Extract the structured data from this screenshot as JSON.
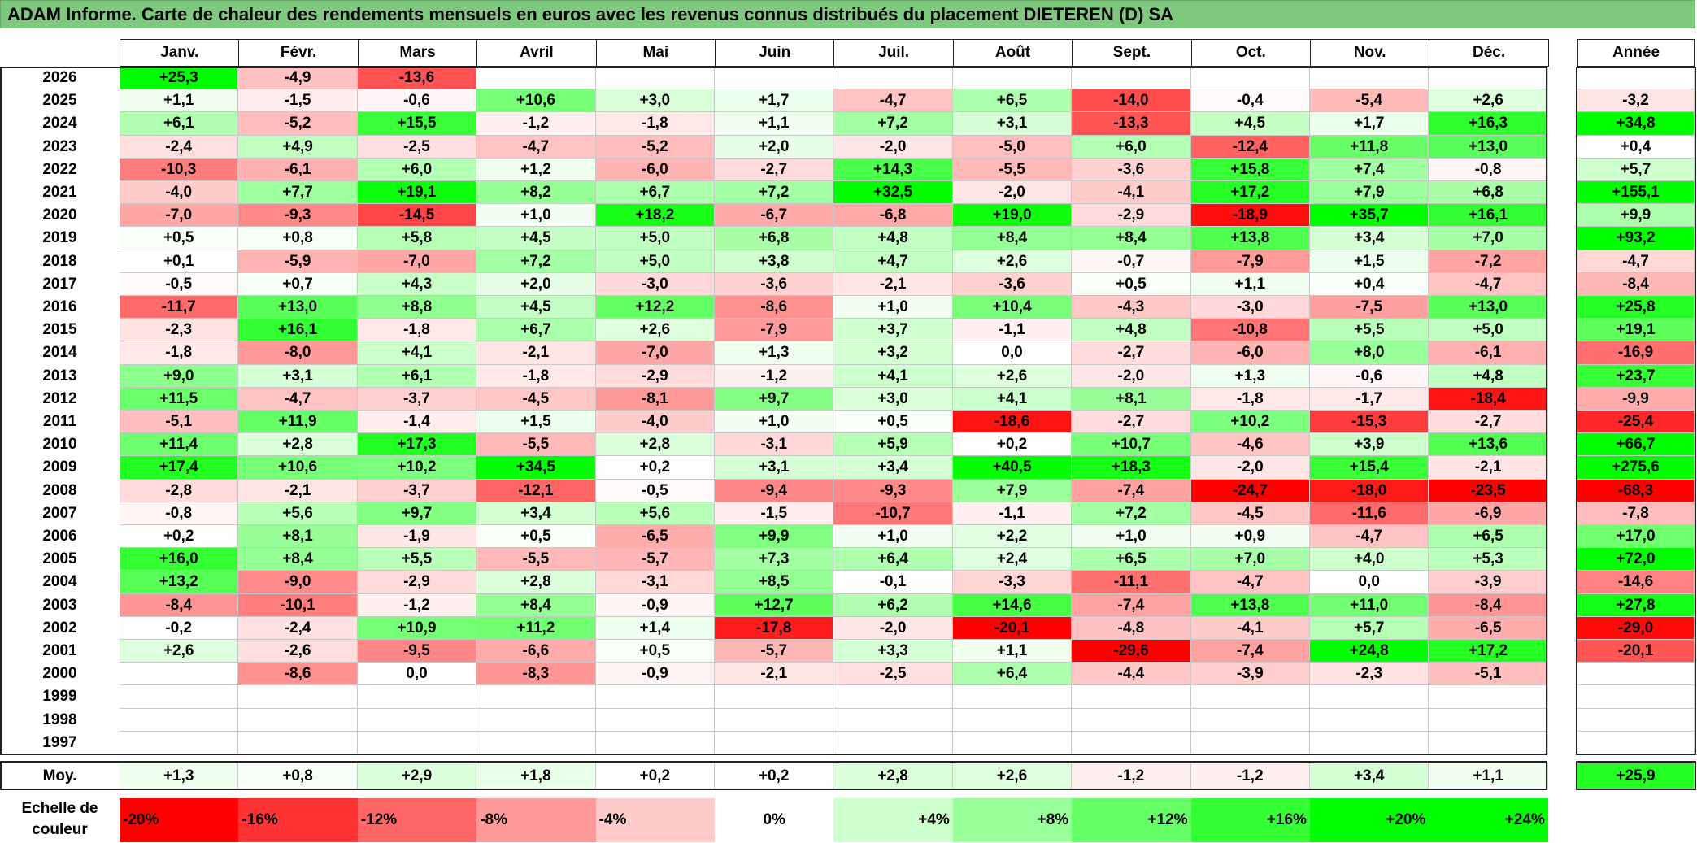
{
  "title": "ADAM Informe. Carte de chaleur des rendements mensuels en euros avec les revenus connus distribués du placement DIETEREN (D) SA",
  "months": [
    "Janv.",
    "Févr.",
    "Mars",
    "Avril",
    "Mai",
    "Juin",
    "Juil.",
    "Août",
    "Sept.",
    "Oct.",
    "Nov.",
    "Déc."
  ],
  "year_header": "Année",
  "avg_label": "Moy.",
  "scale_label": "Echelle de couleur",
  "scale_colors": {
    "neg": "#ff0000",
    "zero": "#ffffff",
    "pos": "#00ff00"
  },
  "chart_data": {
    "type": "heatmap",
    "title": "ADAM Informe. Carte de chaleur des rendements mensuels en euros avec les revenus connus distribués du placement DIETEREN (D) SA",
    "columns": [
      "Janv.",
      "Févr.",
      "Mars",
      "Avril",
      "Mai",
      "Juin",
      "Juil.",
      "Août",
      "Sept.",
      "Oct.",
      "Nov.",
      "Déc."
    ],
    "rows": [
      {
        "year": "2026",
        "values": [
          "+25,3",
          "-4,9",
          "-13,6",
          "",
          "",
          "",
          "",
          "",
          "",
          "",
          "",
          ""
        ],
        "annual": ""
      },
      {
        "year": "2025",
        "values": [
          "+1,1",
          "-1,5",
          "-0,6",
          "+10,6",
          "+3,0",
          "+1,7",
          "-4,7",
          "+6,5",
          "-14,0",
          "-0,4",
          "-5,4",
          "+2,6"
        ],
        "annual": "-3,2"
      },
      {
        "year": "2024",
        "values": [
          "+6,1",
          "-5,2",
          "+15,5",
          "-1,2",
          "-1,8",
          "+1,1",
          "+7,2",
          "+3,1",
          "-13,3",
          "+4,5",
          "+1,7",
          "+16,3"
        ],
        "annual": "+34,8"
      },
      {
        "year": "2023",
        "values": [
          "-2,4",
          "+4,9",
          "-2,5",
          "-4,7",
          "-5,2",
          "+2,0",
          "-2,0",
          "-5,0",
          "+6,0",
          "-12,4",
          "+11,8",
          "+13,0"
        ],
        "annual": "+0,4"
      },
      {
        "year": "2022",
        "values": [
          "-10,3",
          "-6,1",
          "+6,0",
          "+1,2",
          "-6,0",
          "-2,7",
          "+14,3",
          "-5,5",
          "-3,6",
          "+15,8",
          "+7,4",
          "-0,8"
        ],
        "annual": "+5,7"
      },
      {
        "year": "2021",
        "values": [
          "-4,0",
          "+7,7",
          "+19,1",
          "+8,2",
          "+6,7",
          "+7,2",
          "+32,5",
          "-2,0",
          "-4,1",
          "+17,2",
          "+7,9",
          "+6,8"
        ],
        "annual": "+155,1"
      },
      {
        "year": "2020",
        "values": [
          "-7,0",
          "-9,3",
          "-14,5",
          "+1,0",
          "+18,2",
          "-6,7",
          "-6,8",
          "+19,0",
          "-2,9",
          "-18,9",
          "+35,7",
          "+16,1"
        ],
        "annual": "+9,9"
      },
      {
        "year": "2019",
        "values": [
          "+0,5",
          "+0,8",
          "+5,8",
          "+4,5",
          "+5,0",
          "+6,8",
          "+4,8",
          "+8,4",
          "+8,4",
          "+13,8",
          "+3,4",
          "+7,0"
        ],
        "annual": "+93,2"
      },
      {
        "year": "2018",
        "values": [
          "+0,1",
          "-5,9",
          "-7,0",
          "+7,2",
          "+5,0",
          "+3,8",
          "+4,7",
          "+2,6",
          "-0,7",
          "-7,9",
          "+1,5",
          "-7,2"
        ],
        "annual": "-4,7"
      },
      {
        "year": "2017",
        "values": [
          "-0,5",
          "+0,7",
          "+4,3",
          "+2,0",
          "-3,0",
          "-3,6",
          "-2,1",
          "-3,6",
          "+0,5",
          "+1,1",
          "+0,4",
          "-4,7"
        ],
        "annual": "-8,4"
      },
      {
        "year": "2016",
        "values": [
          "-11,7",
          "+13,0",
          "+8,8",
          "+4,5",
          "+12,2",
          "-8,6",
          "+1,0",
          "+10,4",
          "-4,3",
          "-3,0",
          "-7,5",
          "+13,0"
        ],
        "annual": "+25,8"
      },
      {
        "year": "2015",
        "values": [
          "-2,3",
          "+16,1",
          "-1,8",
          "+6,7",
          "+2,6",
          "-7,9",
          "+3,7",
          "-1,1",
          "+4,8",
          "-10,8",
          "+5,5",
          "+5,0"
        ],
        "annual": "+19,1"
      },
      {
        "year": "2014",
        "values": [
          "-1,8",
          "-8,0",
          "+4,1",
          "-2,1",
          "-7,0",
          "+1,3",
          "+3,2",
          "0,0",
          "-2,7",
          "-6,0",
          "+8,0",
          "-6,1"
        ],
        "annual": "-16,9"
      },
      {
        "year": "2013",
        "values": [
          "+9,0",
          "+3,1",
          "+6,1",
          "-1,8",
          "-2,9",
          "-1,2",
          "+4,1",
          "+2,6",
          "-2,0",
          "+1,3",
          "-0,6",
          "+4,8"
        ],
        "annual": "+23,7"
      },
      {
        "year": "2012",
        "values": [
          "+11,5",
          "-4,7",
          "-3,7",
          "-4,5",
          "-8,1",
          "+9,7",
          "+3,0",
          "+4,1",
          "+8,1",
          "-1,8",
          "-1,7",
          "-18,4"
        ],
        "annual": "-9,9"
      },
      {
        "year": "2011",
        "values": [
          "-5,1",
          "+11,9",
          "-1,4",
          "+1,5",
          "-4,0",
          "+1,0",
          "+0,5",
          "-18,6",
          "-2,7",
          "+10,2",
          "-15,3",
          "-2,7"
        ],
        "annual": "-25,4"
      },
      {
        "year": "2010",
        "values": [
          "+11,4",
          "+2,8",
          "+17,3",
          "-5,5",
          "+2,8",
          "-3,1",
          "+5,9",
          "+0,2",
          "+10,7",
          "-4,6",
          "+3,9",
          "+13,6"
        ],
        "annual": "+66,7"
      },
      {
        "year": "2009",
        "values": [
          "+17,4",
          "+10,6",
          "+10,2",
          "+34,5",
          "+0,2",
          "+3,1",
          "+3,4",
          "+40,5",
          "+18,3",
          "-2,0",
          "+15,4",
          "-2,1"
        ],
        "annual": "+275,6"
      },
      {
        "year": "2008",
        "values": [
          "-2,8",
          "-2,1",
          "-3,7",
          "-12,1",
          "-0,5",
          "-9,4",
          "-9,3",
          "+7,9",
          "-7,4",
          "-24,7",
          "-18,0",
          "-23,5"
        ],
        "annual": "-68,3"
      },
      {
        "year": "2007",
        "values": [
          "-0,8",
          "+5,6",
          "+9,7",
          "+3,4",
          "+5,6",
          "-1,5",
          "-10,7",
          "-1,1",
          "+7,2",
          "-4,5",
          "-11,6",
          "-6,9"
        ],
        "annual": "-7,8"
      },
      {
        "year": "2006",
        "values": [
          "+0,2",
          "+8,1",
          "-1,9",
          "+0,5",
          "-6,5",
          "+9,9",
          "+1,0",
          "+2,2",
          "+1,0",
          "+0,9",
          "-4,7",
          "+6,5"
        ],
        "annual": "+17,0"
      },
      {
        "year": "2005",
        "values": [
          "+16,0",
          "+8,4",
          "+5,5",
          "-5,5",
          "-5,7",
          "+7,3",
          "+6,4",
          "+2,4",
          "+6,5",
          "+7,0",
          "+4,0",
          "+5,3"
        ],
        "annual": "+72,0"
      },
      {
        "year": "2004",
        "values": [
          "+13,2",
          "-9,0",
          "-2,9",
          "+2,8",
          "-3,1",
          "+8,5",
          "-0,1",
          "-3,3",
          "-11,1",
          "-4,7",
          "0,0",
          "-3,9"
        ],
        "annual": "-14,6"
      },
      {
        "year": "2003",
        "values": [
          "-8,4",
          "-10,1",
          "-1,2",
          "+8,4",
          "-0,9",
          "+12,7",
          "+6,2",
          "+14,6",
          "-7,4",
          "+13,8",
          "+11,0",
          "-8,4"
        ],
        "annual": "+27,8"
      },
      {
        "year": "2002",
        "values": [
          "-0,2",
          "-2,4",
          "+10,9",
          "+11,2",
          "+1,4",
          "-17,8",
          "-2,0",
          "-20,1",
          "-4,8",
          "-4,1",
          "+5,7",
          "-6,5"
        ],
        "annual": "-29,0"
      },
      {
        "year": "2001",
        "values": [
          "+2,6",
          "-2,6",
          "-9,5",
          "-6,6",
          "+0,5",
          "-5,7",
          "+3,3",
          "+1,1",
          "-29,6",
          "-7,4",
          "+24,8",
          "+17,2"
        ],
        "annual": "-20,1"
      },
      {
        "year": "2000",
        "values": [
          "",
          "-8,6",
          "0,0",
          "-8,3",
          "-0,9",
          "-2,1",
          "-2,5",
          "+6,4",
          "-4,4",
          "-3,9",
          "-2,3",
          "-5,1"
        ],
        "annual": ""
      },
      {
        "year": "1999",
        "values": [
          "",
          "",
          "",
          "",
          "",
          "",
          "",
          "",
          "",
          "",
          "",
          ""
        ],
        "annual": ""
      },
      {
        "year": "1998",
        "values": [
          "",
          "",
          "",
          "",
          "",
          "",
          "",
          "",
          "",
          "",
          "",
          ""
        ],
        "annual": ""
      },
      {
        "year": "1997",
        "values": [
          "",
          "",
          "",
          "",
          "",
          "",
          "",
          "",
          "",
          "",
          "",
          ""
        ],
        "annual": ""
      }
    ],
    "average": {
      "values": [
        "+1,3",
        "+0,8",
        "+2,9",
        "+1,8",
        "+0,2",
        "+0,2",
        "+2,8",
        "+2,6",
        "-1,2",
        "-1,2",
        "+3,4",
        "+1,1"
      ],
      "annual": "+25,9"
    },
    "color_scale": [
      "-20%",
      "-16%",
      "-12%",
      "-8%",
      "-4%",
      "0%",
      "+4%",
      "+8%",
      "+12%",
      "+16%",
      "+20%",
      "+24%"
    ]
  }
}
